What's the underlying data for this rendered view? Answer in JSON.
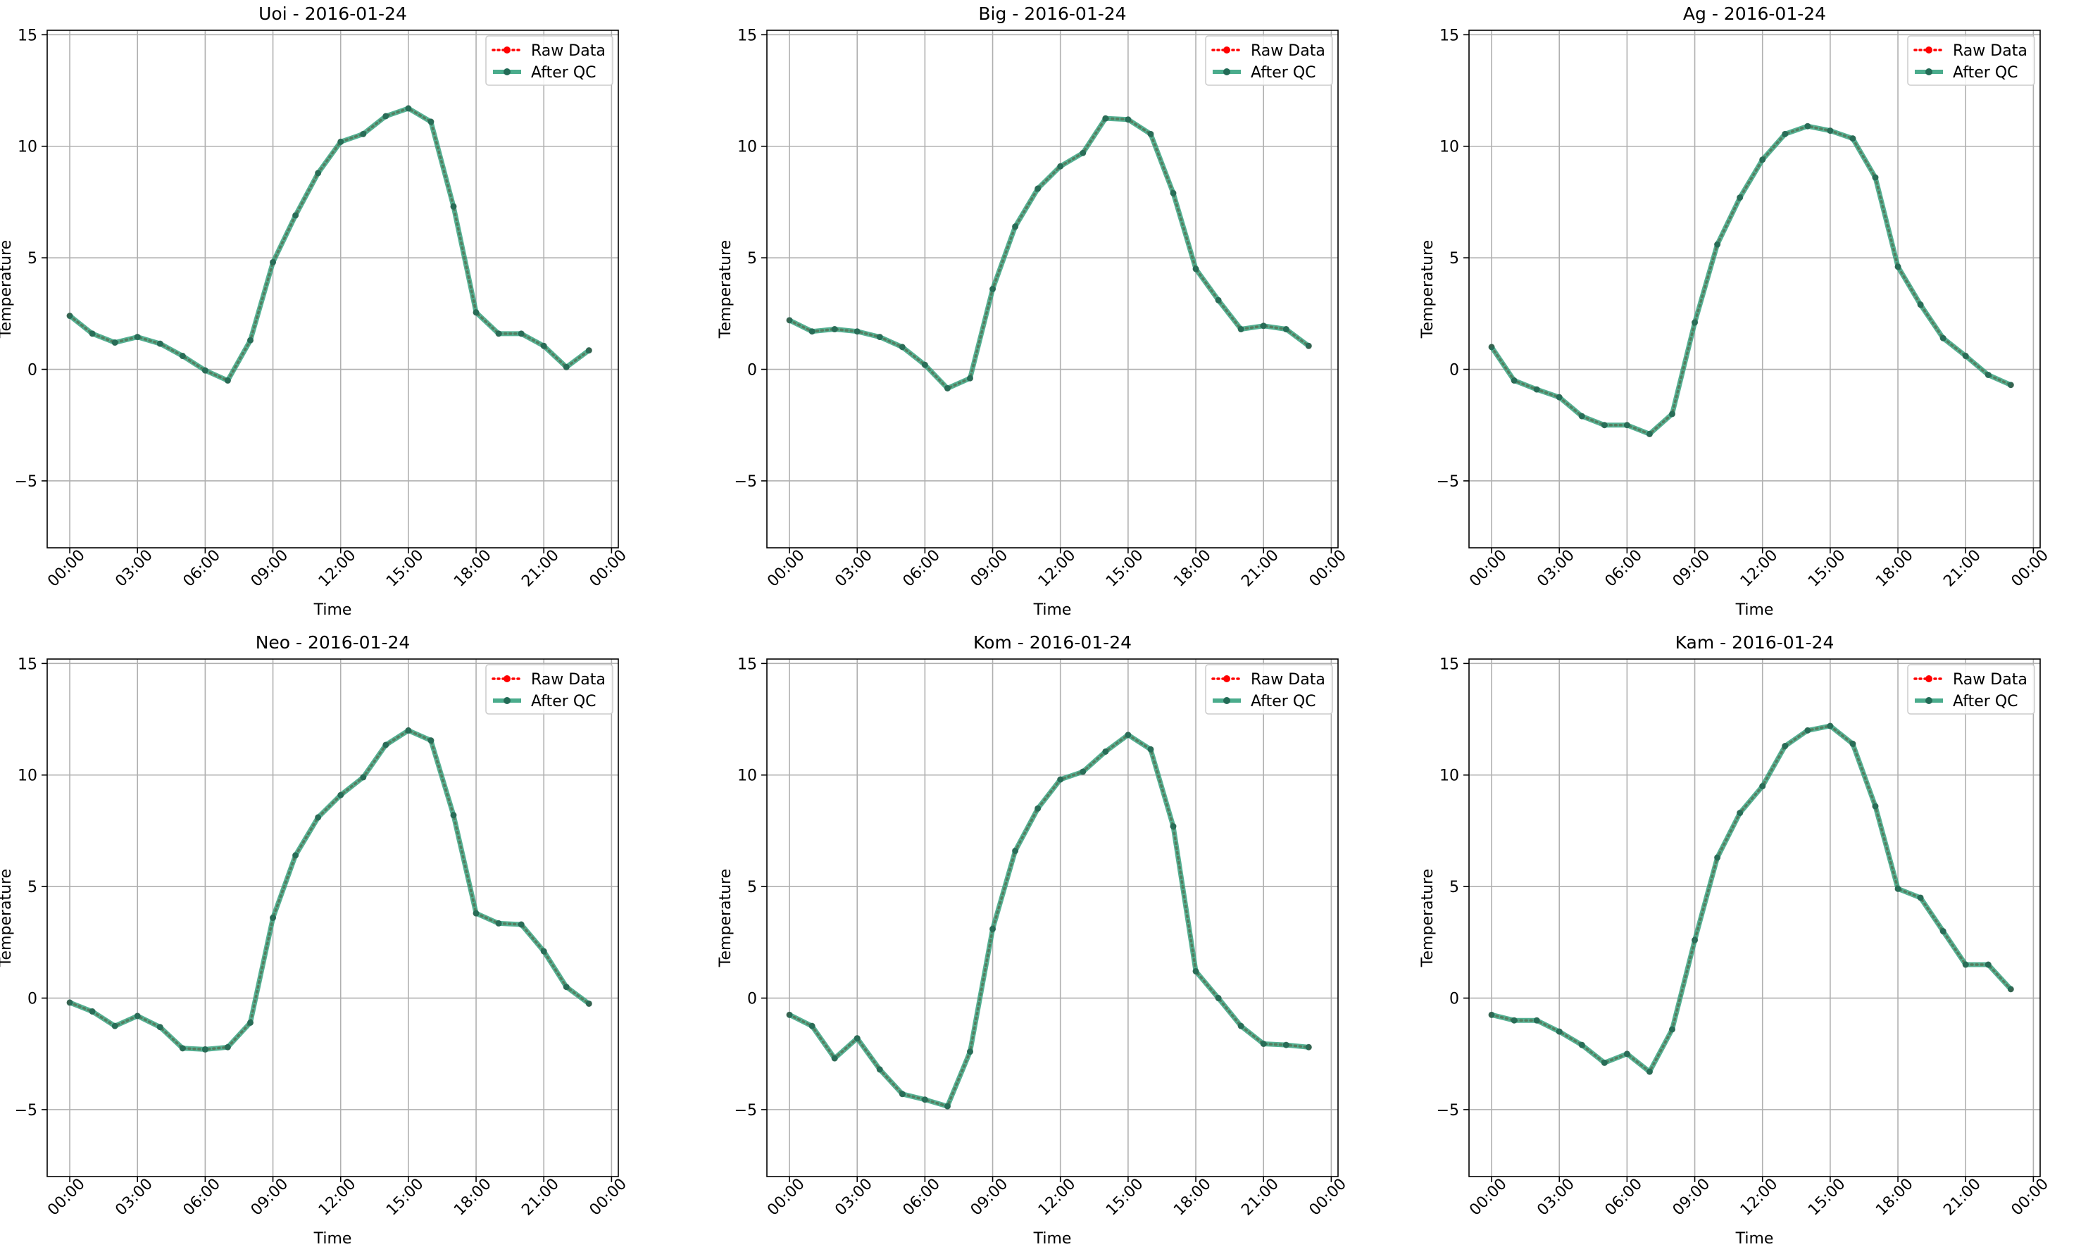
{
  "chart_data": [
    {
      "type": "line",
      "title": "Uoi - 2016-01-24",
      "xlabel": "Time",
      "ylabel": "Temperature",
      "ylim": [
        -8,
        15.2
      ],
      "yticks": [
        -5,
        0,
        5,
        10,
        15
      ],
      "xlim": [
        -1,
        24.3
      ],
      "xticks": [
        0,
        3,
        6,
        9,
        12,
        15,
        18,
        21,
        24
      ],
      "xtick_labels": [
        "00:00",
        "03:00",
        "06:00",
        "09:00",
        "12:00",
        "15:00",
        "18:00",
        "21:00",
        "00:00"
      ],
      "grid": true,
      "legend_position": "top-right",
      "x": [
        0,
        1,
        2,
        3,
        4,
        5,
        6,
        7,
        8,
        9,
        10,
        11,
        12,
        13,
        14,
        15,
        16,
        17,
        18,
        19,
        20,
        21,
        22,
        23
      ],
      "series": [
        {
          "name": "Raw Data",
          "color": "#ff0000",
          "style": "dotted",
          "values": [
            2.4,
            1.6,
            1.2,
            1.45,
            1.15,
            0.6,
            -0.05,
            -0.5,
            1.3,
            4.8,
            6.9,
            8.8,
            10.2,
            10.55,
            11.35,
            11.7,
            11.1,
            7.3,
            2.55,
            1.6,
            1.6,
            1.05,
            0.1,
            0.85
          ]
        },
        {
          "name": "After QC",
          "color": "#2a9d78",
          "style": "solid",
          "values": [
            2.4,
            1.6,
            1.2,
            1.45,
            1.15,
            0.6,
            -0.05,
            -0.5,
            1.3,
            4.8,
            6.9,
            8.8,
            10.2,
            10.55,
            11.35,
            11.7,
            11.1,
            7.3,
            2.55,
            1.6,
            1.6,
            1.05,
            0.1,
            0.85
          ]
        }
      ]
    },
    {
      "type": "line",
      "title": "Big - 2016-01-24",
      "xlabel": "Time",
      "ylabel": "Temperature",
      "ylim": [
        -8,
        15.2
      ],
      "yticks": [
        -5,
        0,
        5,
        10,
        15
      ],
      "xlim": [
        -1,
        24.3
      ],
      "xticks": [
        0,
        3,
        6,
        9,
        12,
        15,
        18,
        21,
        24
      ],
      "xtick_labels": [
        "00:00",
        "03:00",
        "06:00",
        "09:00",
        "12:00",
        "15:00",
        "18:00",
        "21:00",
        "00:00"
      ],
      "grid": true,
      "legend_position": "top-right",
      "x": [
        0,
        1,
        2,
        3,
        4,
        5,
        6,
        7,
        8,
        9,
        10,
        11,
        12,
        13,
        14,
        15,
        16,
        17,
        18,
        19,
        20,
        21,
        22,
        23
      ],
      "series": [
        {
          "name": "Raw Data",
          "color": "#ff0000",
          "style": "dotted",
          "values": [
            2.2,
            1.7,
            1.8,
            1.7,
            1.45,
            1.0,
            0.2,
            -0.85,
            -0.4,
            3.6,
            6.4,
            8.1,
            9.1,
            9.7,
            11.25,
            11.2,
            10.55,
            7.9,
            4.5,
            3.1,
            1.8,
            1.95,
            1.8,
            1.05
          ]
        },
        {
          "name": "After QC",
          "color": "#2a9d78",
          "style": "solid",
          "values": [
            2.2,
            1.7,
            1.8,
            1.7,
            1.45,
            1.0,
            0.2,
            -0.85,
            -0.4,
            3.6,
            6.4,
            8.1,
            9.1,
            9.7,
            11.25,
            11.2,
            10.55,
            7.9,
            4.5,
            3.1,
            1.8,
            1.95,
            1.8,
            1.05
          ]
        }
      ]
    },
    {
      "type": "line",
      "title": "Ag - 2016-01-24",
      "xlabel": "Time",
      "ylabel": "Temperature",
      "ylim": [
        -8,
        15.2
      ],
      "yticks": [
        -5,
        0,
        5,
        10,
        15
      ],
      "xlim": [
        -1,
        24.3
      ],
      "xticks": [
        0,
        3,
        6,
        9,
        12,
        15,
        18,
        21,
        24
      ],
      "xtick_labels": [
        "00:00",
        "03:00",
        "06:00",
        "09:00",
        "12:00",
        "15:00",
        "18:00",
        "21:00",
        "00:00"
      ],
      "grid": true,
      "legend_position": "top-right",
      "x": [
        0,
        1,
        2,
        3,
        4,
        5,
        6,
        7,
        8,
        9,
        10,
        11,
        12,
        13,
        14,
        15,
        16,
        17,
        18,
        19,
        20,
        21,
        22,
        23
      ],
      "series": [
        {
          "name": "Raw Data",
          "color": "#ff0000",
          "style": "dotted",
          "values": [
            1.0,
            -0.5,
            -0.9,
            -1.25,
            -2.1,
            -2.5,
            -2.5,
            -2.9,
            -2.0,
            2.1,
            5.6,
            7.7,
            9.4,
            10.55,
            10.9,
            10.7,
            10.35,
            8.6,
            4.6,
            2.9,
            1.4,
            0.6,
            -0.25,
            -0.7
          ]
        },
        {
          "name": "After QC",
          "color": "#2a9d78",
          "style": "solid",
          "values": [
            1.0,
            -0.5,
            -0.9,
            -1.25,
            -2.1,
            -2.5,
            -2.5,
            -2.9,
            -2.0,
            2.1,
            5.6,
            7.7,
            9.4,
            10.55,
            10.9,
            10.7,
            10.35,
            8.6,
            4.6,
            2.9,
            1.4,
            0.6,
            -0.25,
            -0.7
          ]
        }
      ]
    },
    {
      "type": "line",
      "title": "Neo - 2016-01-24",
      "xlabel": "Time",
      "ylabel": "Temperature",
      "ylim": [
        -8,
        15.2
      ],
      "yticks": [
        -5,
        0,
        5,
        10,
        15
      ],
      "xlim": [
        -1,
        24.3
      ],
      "xticks": [
        0,
        3,
        6,
        9,
        12,
        15,
        18,
        21,
        24
      ],
      "xtick_labels": [
        "00:00",
        "03:00",
        "06:00",
        "09:00",
        "12:00",
        "15:00",
        "18:00",
        "21:00",
        "00:00"
      ],
      "grid": true,
      "legend_position": "top-right",
      "x": [
        0,
        1,
        2,
        3,
        4,
        5,
        6,
        7,
        8,
        9,
        10,
        11,
        12,
        13,
        14,
        15,
        16,
        17,
        18,
        19,
        20,
        21,
        22,
        23
      ],
      "series": [
        {
          "name": "Raw Data",
          "color": "#ff0000",
          "style": "dotted",
          "values": [
            -0.2,
            -0.6,
            -1.25,
            -0.8,
            -1.3,
            -2.25,
            -2.3,
            -2.2,
            -1.1,
            3.6,
            6.4,
            8.1,
            9.1,
            9.9,
            11.35,
            12.0,
            11.55,
            8.2,
            3.8,
            3.35,
            3.3,
            2.1,
            0.5,
            -0.25
          ]
        },
        {
          "name": "After QC",
          "color": "#2a9d78",
          "style": "solid",
          "values": [
            -0.2,
            -0.6,
            -1.25,
            -0.8,
            -1.3,
            -2.25,
            -2.3,
            -2.2,
            -1.1,
            3.6,
            6.4,
            8.1,
            9.1,
            9.9,
            11.35,
            12.0,
            11.55,
            8.2,
            3.8,
            3.35,
            3.3,
            2.1,
            0.5,
            -0.25
          ]
        }
      ]
    },
    {
      "type": "line",
      "title": "Kom - 2016-01-24",
      "xlabel": "Time",
      "ylabel": "Temperature",
      "ylim": [
        -8,
        15.2
      ],
      "yticks": [
        -5,
        0,
        5,
        10,
        15
      ],
      "xlim": [
        -1,
        24.3
      ],
      "xticks": [
        0,
        3,
        6,
        9,
        12,
        15,
        18,
        21,
        24
      ],
      "xtick_labels": [
        "00:00",
        "03:00",
        "06:00",
        "09:00",
        "12:00",
        "15:00",
        "18:00",
        "21:00",
        "00:00"
      ],
      "grid": true,
      "legend_position": "top-right",
      "x": [
        0,
        1,
        2,
        3,
        4,
        5,
        6,
        7,
        8,
        9,
        10,
        11,
        12,
        13,
        14,
        15,
        16,
        17,
        18,
        19,
        20,
        21,
        22,
        23
      ],
      "series": [
        {
          "name": "Raw Data",
          "color": "#ff0000",
          "style": "dotted",
          "values": [
            -0.75,
            -1.25,
            -2.7,
            -1.8,
            -3.2,
            -4.3,
            -4.55,
            -4.85,
            -2.4,
            3.1,
            6.6,
            8.5,
            9.8,
            10.15,
            11.05,
            11.8,
            11.15,
            7.7,
            1.2,
            0.0,
            -1.25,
            -2.05,
            -2.1,
            -2.2
          ]
        },
        {
          "name": "After QC",
          "color": "#2a9d78",
          "style": "solid",
          "values": [
            -0.75,
            -1.25,
            -2.7,
            -1.8,
            -3.2,
            -4.3,
            -4.55,
            -4.85,
            -2.4,
            3.1,
            6.6,
            8.5,
            9.8,
            10.15,
            11.05,
            11.8,
            11.15,
            7.7,
            1.2,
            0.0,
            -1.25,
            -2.05,
            -2.1,
            -2.2
          ]
        }
      ]
    },
    {
      "type": "line",
      "title": "Kam - 2016-01-24",
      "xlabel": "Time",
      "ylabel": "Temperature",
      "ylim": [
        -8,
        15.2
      ],
      "yticks": [
        -5,
        0,
        5,
        10,
        15
      ],
      "xlim": [
        -1,
        24.3
      ],
      "xticks": [
        0,
        3,
        6,
        9,
        12,
        15,
        18,
        21,
        24
      ],
      "xtick_labels": [
        "00:00",
        "03:00",
        "06:00",
        "09:00",
        "12:00",
        "15:00",
        "18:00",
        "21:00",
        "00:00"
      ],
      "grid": true,
      "legend_position": "top-right",
      "x": [
        0,
        1,
        2,
        3,
        4,
        5,
        6,
        7,
        8,
        9,
        10,
        11,
        12,
        13,
        14,
        15,
        16,
        17,
        18,
        19,
        20,
        21,
        22,
        23
      ],
      "series": [
        {
          "name": "Raw Data",
          "color": "#ff0000",
          "style": "dotted",
          "values": [
            -0.75,
            -1.0,
            -1.0,
            -1.5,
            -2.1,
            -2.9,
            -2.5,
            -3.3,
            -1.4,
            2.6,
            6.3,
            8.3,
            9.5,
            11.3,
            12.0,
            12.2,
            11.4,
            8.6,
            4.9,
            4.5,
            3.0,
            1.5,
            1.5,
            0.4
          ]
        },
        {
          "name": "After QC",
          "color": "#2a9d78",
          "style": "solid",
          "values": [
            -0.75,
            -1.0,
            -1.0,
            -1.5,
            -2.1,
            -2.9,
            -2.5,
            -3.3,
            -1.4,
            2.6,
            6.3,
            8.3,
            9.5,
            11.3,
            12.0,
            12.2,
            11.4,
            8.6,
            4.9,
            4.5,
            3.0,
            1.5,
            1.5,
            0.4
          ]
        }
      ]
    }
  ]
}
